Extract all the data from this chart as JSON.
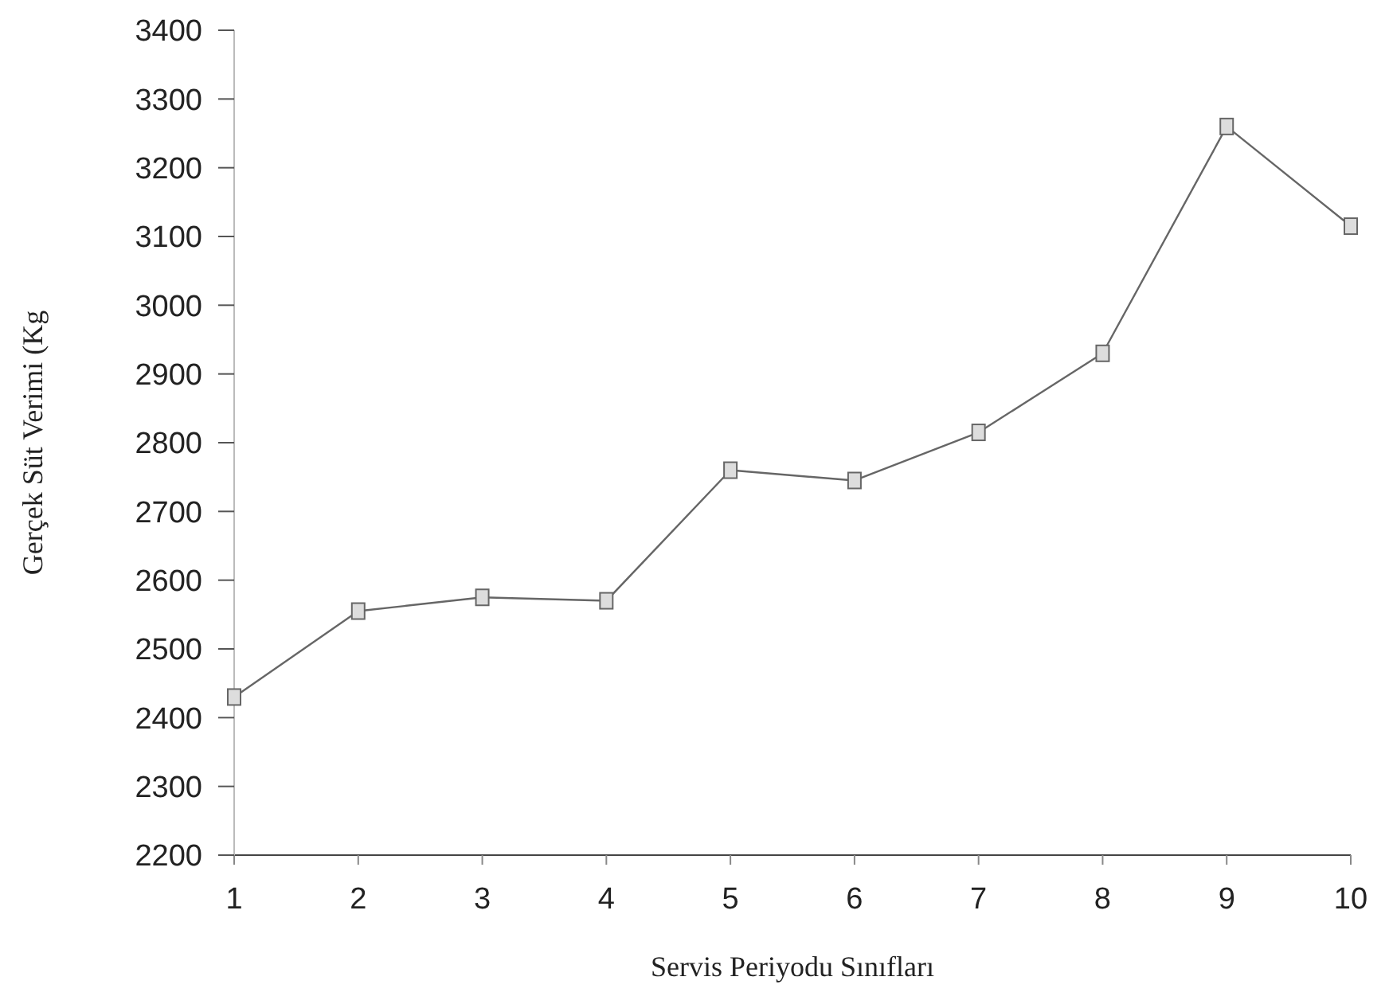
{
  "chart_data": {
    "type": "line",
    "xlabel": "Servis Periyodu Sınıfları",
    "ylabel": "Gerçek Süt Verimi (Kg",
    "categories": [
      "1",
      "2",
      "3",
      "4",
      "5",
      "6",
      "7",
      "8",
      "9",
      "10"
    ],
    "series": [
      {
        "color": "#666666",
        "values": [
          2430,
          2555,
          2575,
          2570,
          2760,
          2745,
          2815,
          2930,
          3260,
          3115
        ]
      }
    ],
    "ylim": [
      2200,
      3400
    ],
    "yticks": [
      2200,
      2300,
      2400,
      2500,
      2600,
      2700,
      2800,
      2900,
      3000,
      3100,
      3200,
      3300,
      3400
    ],
    "marker": "square",
    "line_style": "solid",
    "grid": false,
    "legend": false
  }
}
